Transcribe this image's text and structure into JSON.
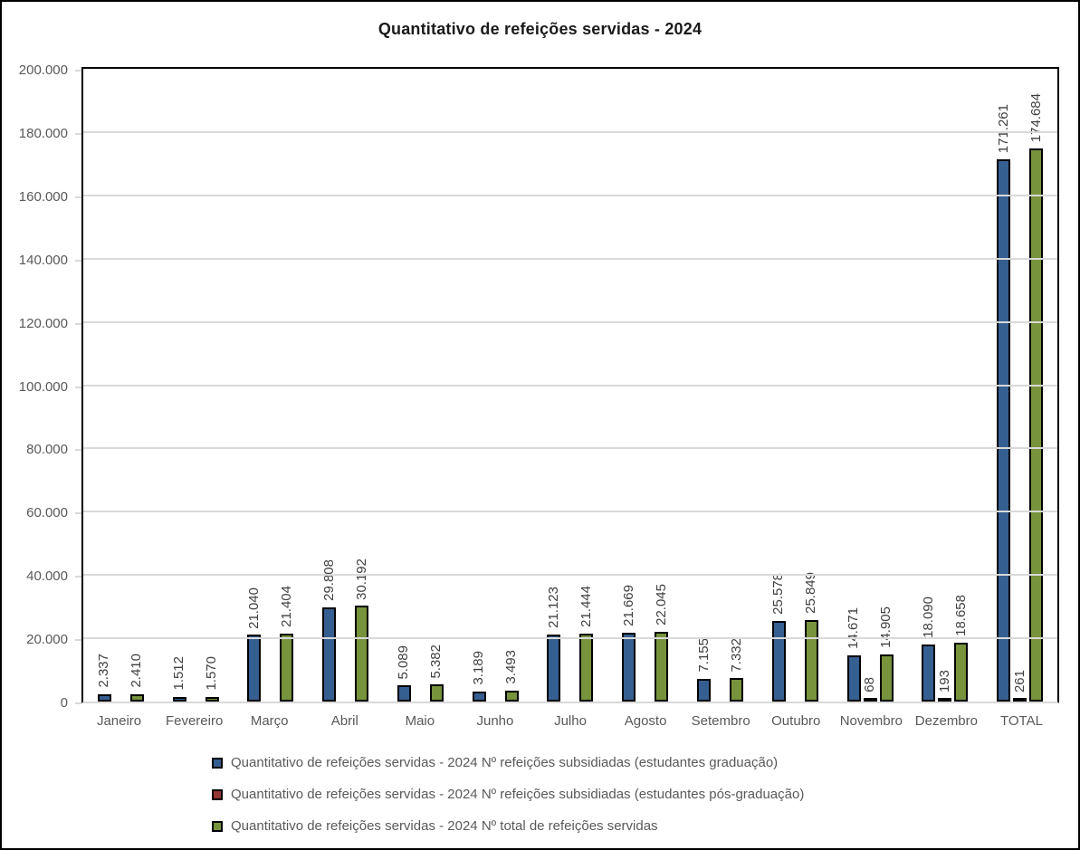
{
  "chart_data": {
    "type": "bar",
    "title": "Quantitativo de refeições servidas - 2024",
    "categories": [
      "Janeiro",
      "Fevereiro",
      "Março",
      "Abril",
      "Maio",
      "Junho",
      "Julho",
      "Agosto",
      "Setembro",
      "Outubro",
      "Novembro",
      "Dezembro",
      "TOTAL"
    ],
    "series": [
      {
        "name": "Quantitativo de refeições servidas - 2024 Nº refeições subsidiadas (estudantes graduação)",
        "color": "#365F91",
        "values": [
          2337,
          1512,
          21040,
          29808,
          5089,
          3189,
          21123,
          21669,
          7155,
          25578,
          14671,
          18090,
          171261
        ],
        "labels": [
          "2.337",
          "1.512",
          "21.040",
          "29.808",
          "5.089",
          "3.189",
          "21.123",
          "21.669",
          "7.155",
          "25.578",
          "14.671",
          "18.090",
          "171.261"
        ]
      },
      {
        "name": "Quantitativo de refeições servidas - 2024 Nº refeições subsidiadas (estudantes pós-graduação)",
        "color": "#953735",
        "values": [
          0,
          0,
          0,
          0,
          0,
          0,
          0,
          0,
          0,
          0,
          68,
          193,
          261
        ],
        "labels": [
          null,
          null,
          null,
          null,
          null,
          null,
          null,
          null,
          null,
          null,
          "68",
          "193",
          "261"
        ]
      },
      {
        "name": "Quantitativo de refeições servidas - 2024 Nº total de refeições servidas",
        "color": "#77933C",
        "values": [
          2410,
          1570,
          21404,
          30192,
          5382,
          3493,
          21444,
          22045,
          7332,
          25849,
          14905,
          18658,
          174684
        ],
        "labels": [
          "2.410",
          "1.570",
          "21.404",
          "30.192",
          "5.382",
          "3.493",
          "21.444",
          "22.045",
          "7.332",
          "25.849",
          "14.905",
          "18.658",
          "174.684"
        ]
      }
    ],
    "ylim": [
      0,
      200000
    ],
    "ytick_step": 20000,
    "ytick_labels": [
      "0",
      "20.000",
      "40.000",
      "60.000",
      "80.000",
      "100.000",
      "120.000",
      "140.000",
      "160.000",
      "180.000",
      "200.000"
    ],
    "grid": true,
    "legend_position": "bottom-left",
    "colors": {
      "gridline": "#d9d9d9",
      "axis_text": "#595959",
      "data_label_text": "#3f3f3f",
      "bar_border": "#000000"
    }
  }
}
